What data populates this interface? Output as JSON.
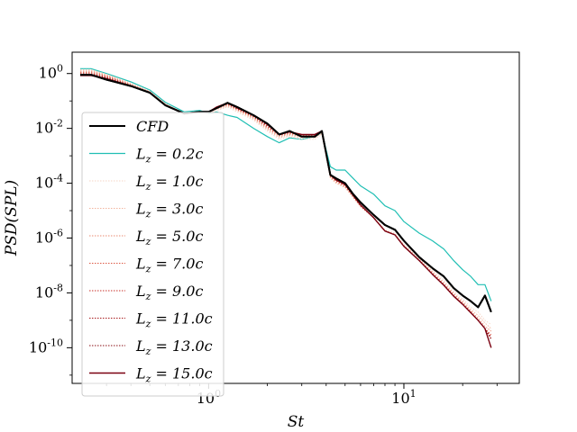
{
  "chart_data": {
    "type": "line",
    "title": "",
    "xlabel": "St",
    "ylabel": "PSD(SPL)",
    "xscale": "log",
    "yscale": "log",
    "xlim": [
      0.2,
      39
    ],
    "ylim": [
      5e-12,
      6
    ],
    "x_ticks": [
      {
        "value": 1,
        "label": "10^0"
      },
      {
        "value": 10,
        "label": "10^1"
      }
    ],
    "y_ticks": [
      {
        "value": 1,
        "label": "10^0"
      },
      {
        "value": 0.01,
        "label": "10^-2"
      },
      {
        "value": 0.0001,
        "label": "10^-4"
      },
      {
        "value": 1e-06,
        "label": "10^-6"
      },
      {
        "value": 1e-08,
        "label": "10^-8"
      },
      {
        "value": 1e-10,
        "label": "10^-10"
      }
    ],
    "legend_position": "lower-left",
    "x": [
      0.22,
      0.25,
      0.3,
      0.4,
      0.5,
      0.6,
      0.75,
      0.9,
      1.0,
      1.1,
      1.25,
      1.4,
      1.7,
      2.0,
      2.3,
      2.6,
      3.0,
      3.5,
      3.8,
      4.2,
      4.5,
      5.0,
      5.5,
      6.0,
      7.0,
      8.0,
      9.0,
      10.0,
      12.0,
      14.0,
      16.0,
      18.0,
      20.0,
      22.0,
      24.0,
      26.0,
      28.0
    ],
    "series": [
      {
        "name": "CFD",
        "legend": "CFD",
        "color": "#000000",
        "width": 2.0,
        "dash": "",
        "values": [
          0.9,
          0.9,
          0.6,
          0.35,
          0.2,
          0.07,
          0.035,
          0.04,
          0.04,
          0.055,
          0.085,
          0.06,
          0.03,
          0.015,
          0.006,
          0.008,
          0.005,
          0.005,
          0.008,
          0.0002,
          0.00015,
          0.0001,
          4e-05,
          2e-05,
          7e-06,
          3e-06,
          2e-06,
          8e-07,
          2e-07,
          8e-08,
          4e-08,
          1.5e-08,
          8e-09,
          5e-09,
          3e-09,
          8e-09,
          2e-09
        ]
      },
      {
        "name": "Lz = 0.2c",
        "legend": "L_z = 0.2c",
        "color": "#20bfb4",
        "width": 1.2,
        "dash": "",
        "values": [
          1.5,
          1.5,
          1.0,
          0.5,
          0.25,
          0.09,
          0.04,
          0.045,
          0.035,
          0.04,
          0.03,
          0.025,
          0.01,
          0.005,
          0.003,
          0.0045,
          0.004,
          0.005,
          0.007,
          0.0004,
          0.0003,
          0.0003,
          0.00015,
          8e-05,
          4e-05,
          1.5e-05,
          1e-05,
          4e-06,
          1.5e-06,
          8e-07,
          4e-07,
          1.5e-07,
          7e-08,
          4e-08,
          2e-08,
          2e-08,
          5e-09
        ]
      },
      {
        "name": "Lz = 1.0c",
        "legend": "L_z = 1.0c",
        "color": "#f6d4c4",
        "width": 0.9,
        "dash": "1.5,1.5",
        "values": [
          1.4,
          1.4,
          0.95,
          0.45,
          0.23,
          0.08,
          0.035,
          0.04,
          0.035,
          0.045,
          0.06,
          0.04,
          0.02,
          0.008,
          0.004,
          0.005,
          0.004,
          0.004,
          0.006,
          0.00015,
          0.0001,
          7e-05,
          3e-05,
          1.5e-05,
          6e-06,
          2e-06,
          1.5e-06,
          6e-07,
          2e-07,
          7e-08,
          3e-08,
          1.2e-08,
          6e-09,
          3e-09,
          2e-09,
          1e-09,
          7e-10
        ]
      },
      {
        "name": "Lz = 3.0c",
        "legend": "L_z = 3.0c",
        "color": "#f2b49e",
        "width": 0.9,
        "dash": "1.5,1.5",
        "values": [
          1.3,
          1.3,
          0.9,
          0.42,
          0.22,
          0.08,
          0.035,
          0.04,
          0.037,
          0.05,
          0.065,
          0.045,
          0.022,
          0.009,
          0.0045,
          0.0055,
          0.0045,
          0.0045,
          0.0065,
          0.00016,
          0.0001,
          7e-05,
          3e-05,
          1.4e-05,
          5.5e-06,
          1.9e-06,
          1.4e-06,
          5.5e-07,
          1.8e-07,
          6e-08,
          2.5e-08,
          1e-08,
          5e-09,
          2.5e-09,
          1.5e-09,
          8e-10,
          5e-10
        ]
      },
      {
        "name": "Lz = 5.0c",
        "legend": "L_z = 5.0c",
        "color": "#ea8a72",
        "width": 0.9,
        "dash": "1.5,1.5",
        "values": [
          1.2,
          1.2,
          0.85,
          0.4,
          0.21,
          0.075,
          0.034,
          0.04,
          0.038,
          0.052,
          0.07,
          0.048,
          0.024,
          0.01,
          0.005,
          0.006,
          0.005,
          0.005,
          0.007,
          0.00017,
          0.00011,
          7.5e-05,
          3.2e-05,
          1.4e-05,
          5.5e-06,
          1.8e-06,
          1.3e-06,
          5e-07,
          1.6e-07,
          5.5e-08,
          2.2e-08,
          9e-09,
          4.5e-09,
          2.2e-09,
          1.2e-09,
          6e-10,
          4e-10
        ]
      },
      {
        "name": "Lz = 7.0c",
        "legend": "L_z = 7.0c",
        "color": "#dc5a44",
        "width": 0.9,
        "dash": "1.5,1.5",
        "values": [
          1.1,
          1.1,
          0.8,
          0.38,
          0.2,
          0.072,
          0.033,
          0.04,
          0.039,
          0.055,
          0.075,
          0.05,
          0.026,
          0.011,
          0.0055,
          0.0065,
          0.0055,
          0.0055,
          0.0075,
          0.00018,
          0.00012,
          8e-05,
          3.4e-05,
          1.5e-05,
          5.5e-06,
          1.8e-06,
          1.3e-06,
          5e-07,
          1.5e-07,
          5e-08,
          2e-08,
          8e-09,
          4e-09,
          2e-09,
          1e-09,
          5e-10,
          3e-10
        ]
      },
      {
        "name": "Lz = 9.0c",
        "legend": "L_z = 9.0c",
        "color": "#c8322a",
        "width": 0.9,
        "dash": "1.5,1.5",
        "values": [
          1.0,
          1.0,
          0.75,
          0.37,
          0.2,
          0.07,
          0.033,
          0.04,
          0.04,
          0.056,
          0.078,
          0.052,
          0.027,
          0.012,
          0.0058,
          0.007,
          0.0058,
          0.0058,
          0.0078,
          0.00019,
          0.00013,
          8.5e-05,
          3.5e-05,
          1.6e-05,
          5.5e-06,
          1.8e-06,
          1.3e-06,
          5e-07,
          1.5e-07,
          5e-08,
          2e-08,
          8e-09,
          4e-09,
          2e-09,
          1e-09,
          5e-10,
          2.5e-10
        ]
      },
      {
        "name": "Lz = 11.0c",
        "legend": "L_z = 11.0c",
        "color": "#a81c1e",
        "width": 0.9,
        "dash": "1.5,1.5",
        "values": [
          0.95,
          0.95,
          0.7,
          0.36,
          0.2,
          0.07,
          0.034,
          0.04,
          0.04,
          0.057,
          0.08,
          0.054,
          0.028,
          0.013,
          0.006,
          0.0072,
          0.006,
          0.006,
          0.008,
          0.0002,
          0.00013,
          8.8e-05,
          3.6e-05,
          1.6e-05,
          5.5e-06,
          1.8e-06,
          1.3e-06,
          5e-07,
          1.5e-07,
          4.8e-08,
          1.9e-08,
          7.5e-09,
          3.8e-09,
          1.9e-09,
          1e-09,
          5e-10,
          2.2e-10
        ]
      },
      {
        "name": "Lz = 13.0c",
        "legend": "L_z = 13.0c",
        "color": "#8a0e14",
        "width": 0.9,
        "dash": "1.5,1.5",
        "values": [
          0.9,
          0.9,
          0.68,
          0.36,
          0.2,
          0.07,
          0.034,
          0.04,
          0.04,
          0.058,
          0.082,
          0.055,
          0.029,
          0.013,
          0.006,
          0.0074,
          0.006,
          0.006,
          0.008,
          0.0002,
          0.00013,
          9e-05,
          3.6e-05,
          1.6e-05,
          5.5e-06,
          1.8e-06,
          1.3e-06,
          5e-07,
          1.5e-07,
          4.8e-08,
          1.9e-08,
          7.5e-09,
          3.8e-09,
          1.9e-09,
          1e-09,
          5e-10,
          2e-10
        ]
      },
      {
        "name": "Lz = 15.0c",
        "legend": "L_z = 15.0c",
        "color": "#7a0010",
        "width": 1.4,
        "dash": "",
        "values": [
          0.85,
          0.85,
          0.65,
          0.35,
          0.2,
          0.07,
          0.034,
          0.04,
          0.04,
          0.06,
          0.085,
          0.056,
          0.03,
          0.014,
          0.006,
          0.0075,
          0.006,
          0.006,
          0.008,
          0.0002,
          0.00013,
          9e-05,
          3.6e-05,
          1.6e-05,
          5.5e-06,
          1.8e-06,
          1.3e-06,
          5e-07,
          1.5e-07,
          4.8e-08,
          1.9e-08,
          7.5e-09,
          3.8e-09,
          1.9e-09,
          1e-09,
          5e-10,
          1e-10
        ]
      }
    ]
  }
}
